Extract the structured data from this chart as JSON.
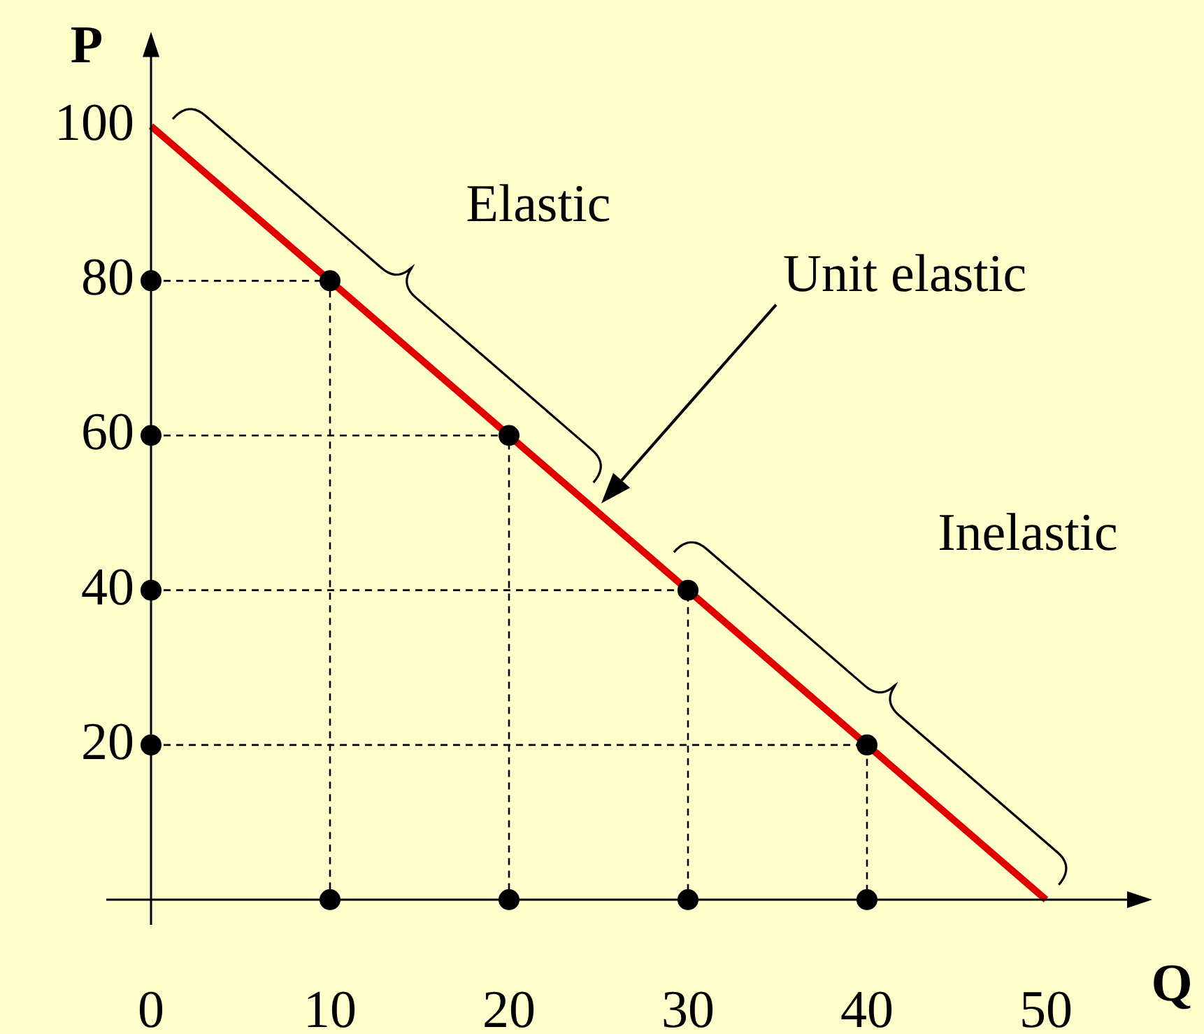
{
  "chart_data": {
    "type": "line",
    "xlabel": "Q",
    "ylabel": "P",
    "xlim": [
      0,
      55
    ],
    "ylim": [
      0,
      110
    ],
    "xticks": [
      0,
      10,
      20,
      30,
      40,
      50
    ],
    "yticks": [
      20,
      40,
      60,
      80,
      100
    ],
    "grid": false,
    "legend": false,
    "line_style": "solid",
    "series": [
      {
        "color": "#e00000",
        "x": [
          0,
          50
        ],
        "values": [
          100,
          0
        ]
      },
      {
        "color": "#000000",
        "line_style": "dashed",
        "x": [
          0,
          10,
          10
        ],
        "values": [
          80,
          80,
          0
        ]
      },
      {
        "color": "#000000",
        "line_style": "dashed",
        "x": [
          0,
          20,
          20
        ],
        "values": [
          60,
          60,
          0
        ]
      },
      {
        "color": "#000000",
        "line_style": "dashed",
        "x": [
          0,
          30,
          30
        ],
        "values": [
          40,
          40,
          0
        ]
      },
      {
        "color": "#000000",
        "line_style": "dashed",
        "x": [
          0,
          40,
          40
        ],
        "values": [
          20,
          20,
          0
        ]
      },
      {
        "type": "scatter",
        "color": "#000000",
        "x": [
          10,
          20,
          30,
          40
        ],
        "values": [
          80,
          60,
          40,
          20
        ]
      },
      {
        "type": "scatter",
        "color": "#000000",
        "x": [
          0,
          0,
          0,
          0,
          10,
          20,
          30,
          40
        ],
        "values": [
          80,
          60,
          40,
          20,
          0,
          0,
          0,
          0
        ]
      }
    ],
    "annotations": [
      "Elastic",
      "Unit elastic",
      "Inelastic"
    ]
  }
}
